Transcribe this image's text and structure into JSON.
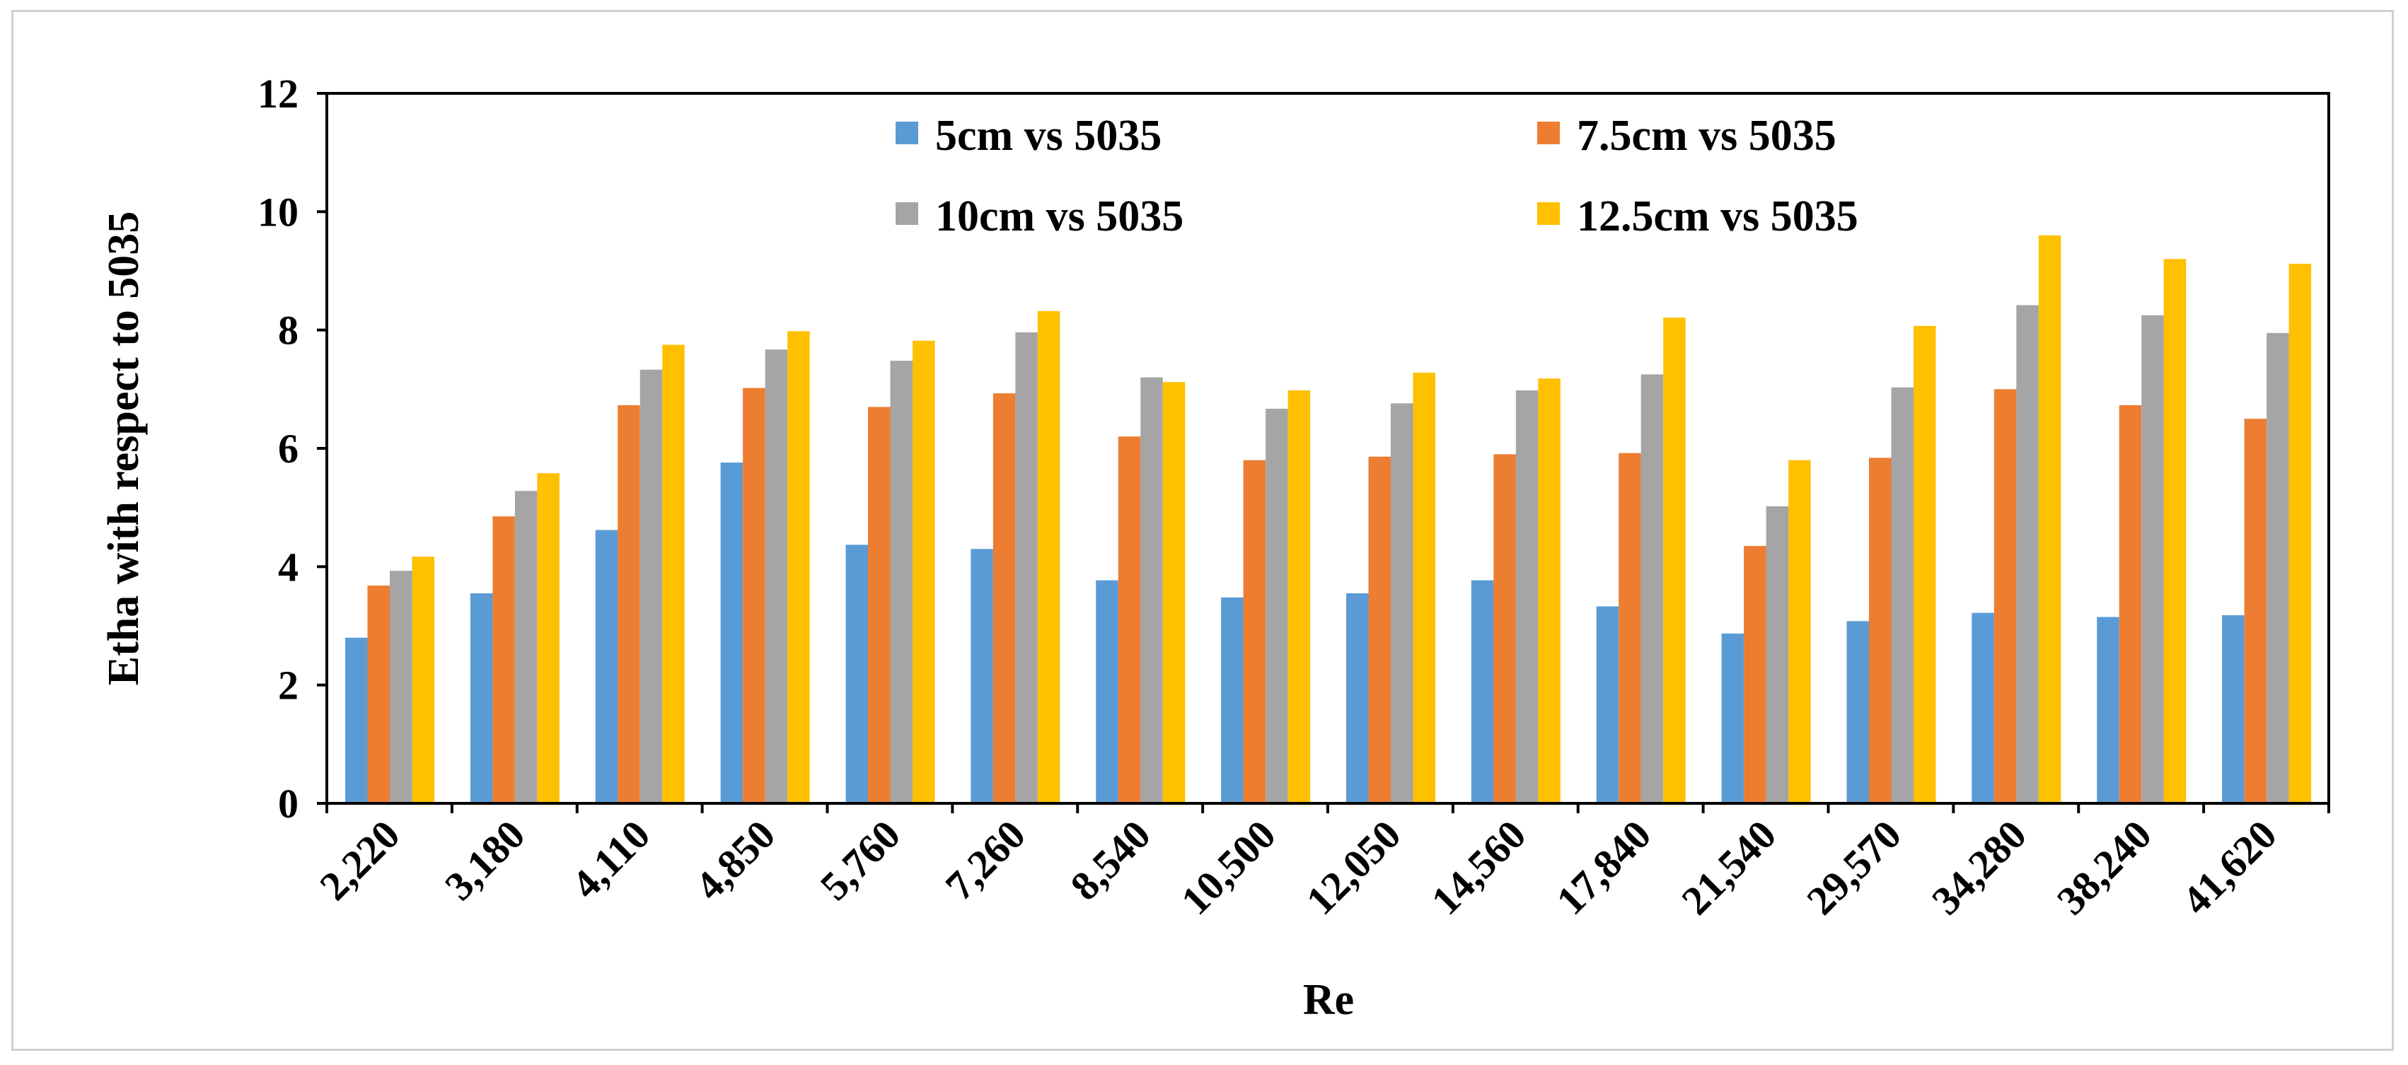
{
  "chart_data": {
    "type": "bar",
    "title": "",
    "xlabel": "Re",
    "ylabel": "Etha with respect to 5035",
    "ylim": [
      0,
      12
    ],
    "yticks": [
      "0",
      "2",
      "4",
      "6",
      "8",
      "10",
      "12"
    ],
    "grid": false,
    "legend_position": "top-inside",
    "categories": [
      "2,220",
      "3,180",
      "4,110",
      "4,850",
      "5,760",
      "7,260",
      "8,540",
      "10,500",
      "12,050",
      "14,560",
      "17,840",
      "21,540",
      "29,570",
      "34,280",
      "38,240",
      "41,620"
    ],
    "series": [
      {
        "name": "5cm vs 5035",
        "color": "#5B9BD5",
        "values": [
          2.8,
          3.55,
          4.62,
          5.76,
          4.37,
          4.3,
          3.77,
          3.48,
          3.55,
          3.77,
          3.33,
          2.87,
          3.08,
          3.22,
          3.15,
          3.18
        ]
      },
      {
        "name": "7.5cm vs 5035",
        "color": "#ED7D31",
        "values": [
          3.68,
          4.85,
          6.73,
          7.02,
          6.7,
          6.93,
          6.2,
          5.8,
          5.86,
          5.9,
          5.92,
          4.35,
          5.84,
          7.0,
          6.73,
          6.5
        ]
      },
      {
        "name": "10cm vs 5035",
        "color": "#A5A5A5",
        "values": [
          3.93,
          5.28,
          7.33,
          7.67,
          7.48,
          7.96,
          7.2,
          6.67,
          6.76,
          6.98,
          7.25,
          5.02,
          7.03,
          8.42,
          8.25,
          7.95
        ]
      },
      {
        "name": "12.5cm vs 5035",
        "color": "#FFC000",
        "values": [
          4.17,
          5.58,
          7.75,
          7.98,
          7.82,
          8.32,
          7.12,
          6.98,
          7.28,
          7.18,
          8.21,
          5.8,
          8.07,
          9.6,
          9.2,
          9.12
        ]
      }
    ]
  }
}
